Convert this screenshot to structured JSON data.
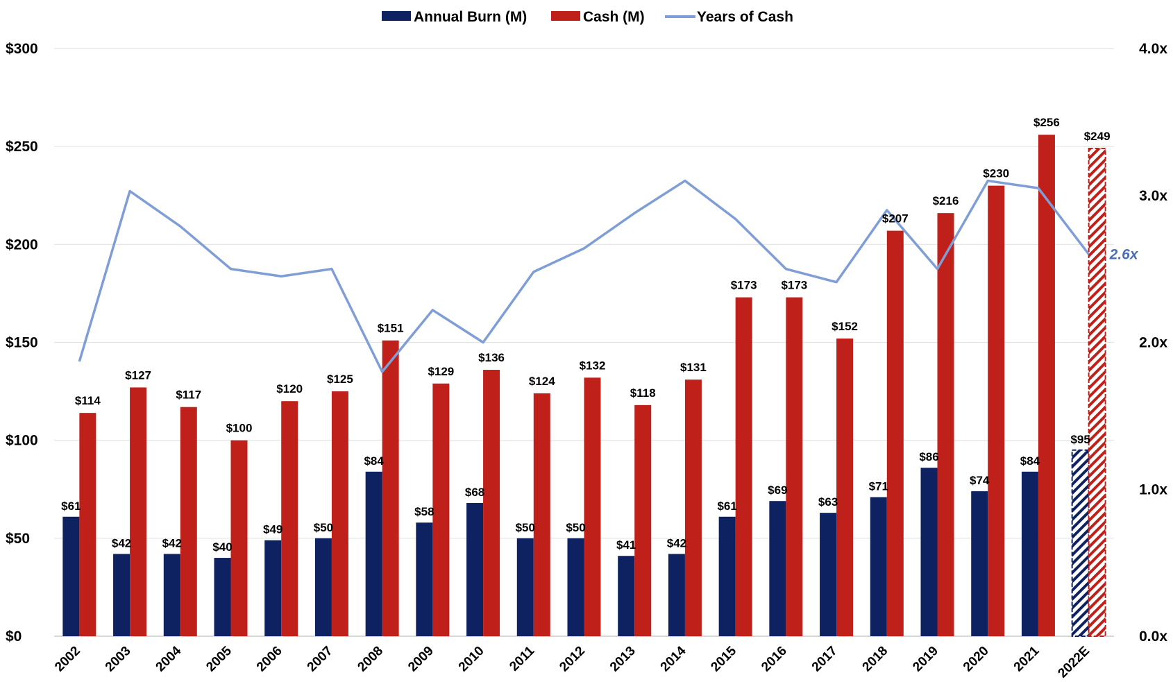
{
  "chart_data": {
    "type": "bar",
    "title": "",
    "xlabel": "",
    "ylabel": "",
    "legend_position": "top-center",
    "grid": true,
    "categories": [
      "2002",
      "2003",
      "2004",
      "2005",
      "2006",
      "2007",
      "2008",
      "2009",
      "2010",
      "2011",
      "2012",
      "2013",
      "2014",
      "2015",
      "2016",
      "2017",
      "2018",
      "2019",
      "2020",
      "2021",
      "2022E"
    ],
    "projected_categories": [
      "2022E"
    ],
    "ylim_left": [
      0,
      300
    ],
    "ylim_right": [
      0,
      4
    ],
    "yticks_left": [
      "$0",
      "$50",
      "$100",
      "$150",
      "$200",
      "$250",
      "$300"
    ],
    "yticks_right": [
      "0.0x",
      "1.0x",
      "2.0x",
      "3.0x",
      "4.0x"
    ],
    "series": [
      {
        "name": "Annual Burn (M)",
        "kind": "bar",
        "axis": "left",
        "color": "#0e2161",
        "values": [
          61,
          42,
          42,
          40,
          49,
          50,
          84,
          58,
          68,
          50,
          50,
          41,
          42,
          61,
          69,
          63,
          71,
          86,
          74,
          84,
          95
        ],
        "labels": [
          "$61",
          "$42",
          "$42",
          "$40",
          "$49",
          "$50",
          "$84",
          "$58",
          "$68",
          "$50",
          "$50",
          "$41",
          "$42",
          "$61",
          "$69",
          "$63",
          "$71",
          "$86",
          "$74",
          "$84",
          "$95"
        ]
      },
      {
        "name": "Cash (M)",
        "kind": "bar",
        "axis": "left",
        "color": "#c0201a",
        "values": [
          114,
          127,
          117,
          100,
          120,
          125,
          151,
          129,
          136,
          124,
          132,
          118,
          131,
          173,
          173,
          152,
          207,
          216,
          230,
          256,
          249
        ],
        "labels": [
          "$114",
          "$127",
          "$117",
          "$100",
          "$120",
          "$125",
          "$151",
          "$129",
          "$136",
          "$124",
          "$132",
          "$118",
          "$131",
          "$173",
          "$173",
          "$152",
          "$207",
          "$216",
          "$230",
          "$256",
          "$249"
        ]
      },
      {
        "name": "Years of Cash",
        "kind": "line",
        "axis": "right",
        "color": "#7f9ed6",
        "values": [
          1.87,
          3.03,
          2.79,
          2.5,
          2.45,
          2.5,
          1.8,
          2.22,
          2.0,
          2.48,
          2.64,
          2.88,
          3.1,
          2.84,
          2.5,
          2.41,
          2.9,
          2.5,
          3.1,
          3.05,
          2.6
        ],
        "end_label": "2.6x",
        "end_label_color": "#4a6fb5"
      }
    ]
  }
}
